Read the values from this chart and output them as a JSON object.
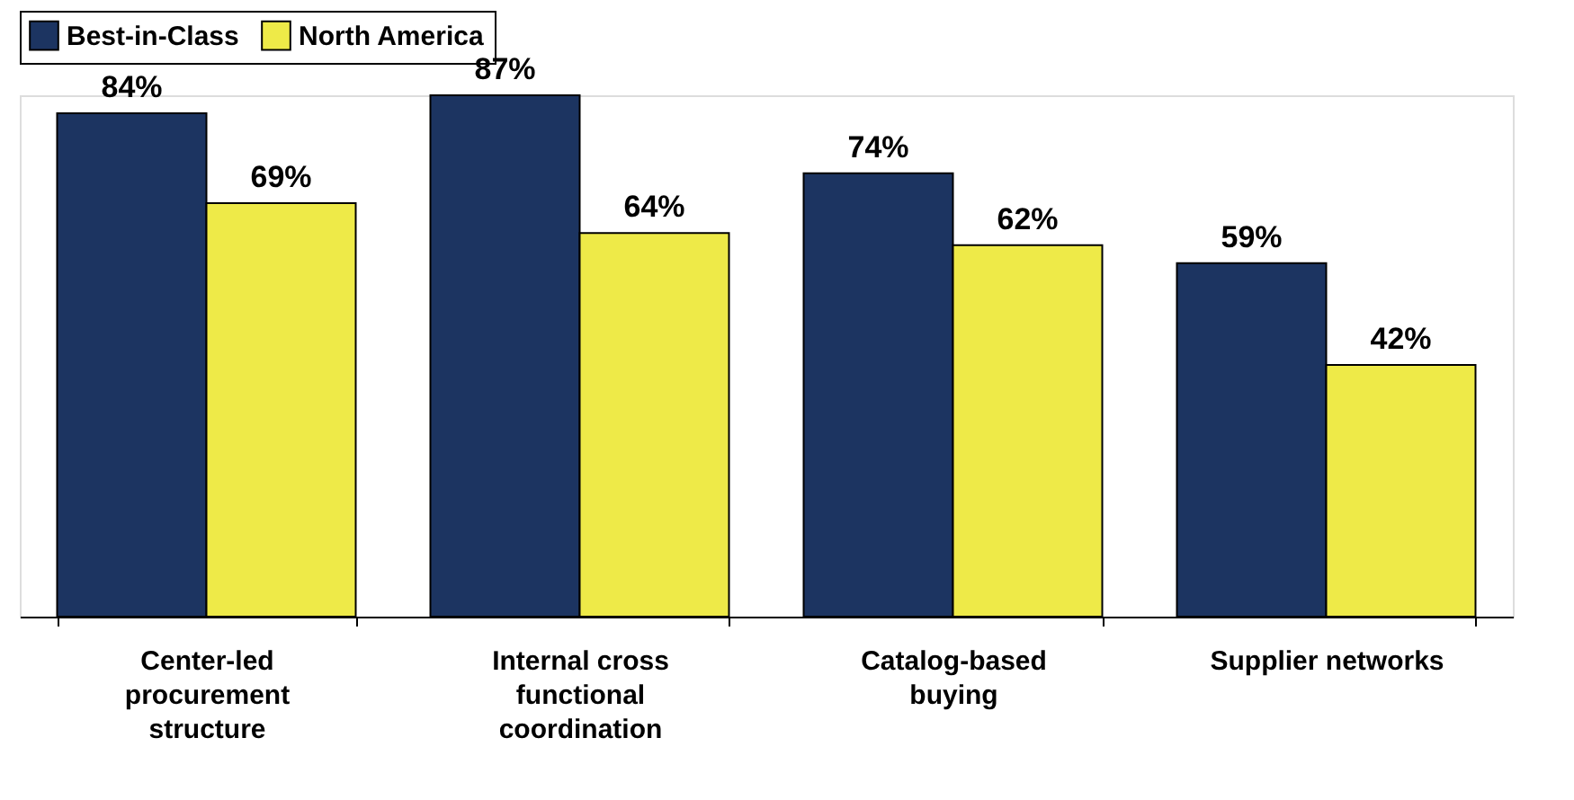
{
  "chart_data": {
    "type": "bar",
    "categories": [
      "Center-led procurement structure",
      "Internal cross functional coordination",
      "Catalog-based buying",
      "Supplier networks"
    ],
    "series": [
      {
        "name": "Best-in-Class",
        "color": "#1c3461",
        "values": [
          84,
          87,
          74,
          59
        ],
        "value_labels": [
          "84%",
          "87%",
          "74%",
          "59%"
        ]
      },
      {
        "name": "North America",
        "color": "#eeea48",
        "values": [
          69,
          64,
          62,
          42
        ],
        "value_labels": [
          "69%",
          "64%",
          "62%",
          "42%"
        ]
      }
    ],
    "legend": "top",
    "grid": false,
    "tick_labels": "x"
  }
}
